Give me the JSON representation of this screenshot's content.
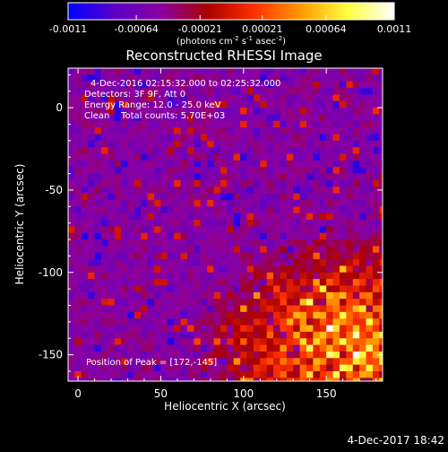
{
  "chart_data": {
    "type": "heatmap",
    "title": "Reconstructed RHESSI Image",
    "xlabel": "Heliocentric X (arcsec)",
    "ylabel": "Heliocentric Y (arcsec)",
    "xlim": [
      -6,
      184
    ],
    "ylim": [
      -166,
      24
    ],
    "x_ticks": [
      "0",
      "50",
      "100",
      "150"
    ],
    "x_tick_values": [
      0,
      50,
      100,
      150
    ],
    "y_ticks": [
      "0",
      "-50",
      "-100",
      "-150"
    ],
    "y_tick_values": [
      0,
      -50,
      -100,
      -150
    ],
    "colorbar": {
      "min": -0.0011,
      "max": 0.0011,
      "ticks": [
        "-0.0011",
        "-0.00064",
        "-0.00021",
        "0.00021",
        "0.00064",
        "0.0011"
      ],
      "tick_values": [
        -0.0011,
        -0.00064,
        -0.00021,
        0.00021,
        0.00064,
        0.0011
      ],
      "units_main": "(photons cm",
      "units_exp1": "-2",
      "units_s": " s",
      "units_exp2": "-1",
      "units_asec": " asec",
      "units_exp3": "-2",
      "units_close": ")",
      "colormap": [
        "#0000ff",
        "#5a00c8",
        "#8c00a0",
        "#aa0000",
        "#ff3000",
        "#ff9a00",
        "#ffff40",
        "#ffffff"
      ]
    },
    "info_lines": [
      "4-Dec-2016 02:15:32.000 to 02:25:32.000",
      "Detectors: 3F 9F, Att 0",
      "Energy Range: 12.0 - 25.0 keV",
      "Clean    Total counts: 5.70E+03"
    ],
    "peak_label": "Position of Peak = [172,-145]",
    "peak": [
      172,
      -145
    ]
  },
  "footer_timestamp": "4-Dec-2017 18:42"
}
